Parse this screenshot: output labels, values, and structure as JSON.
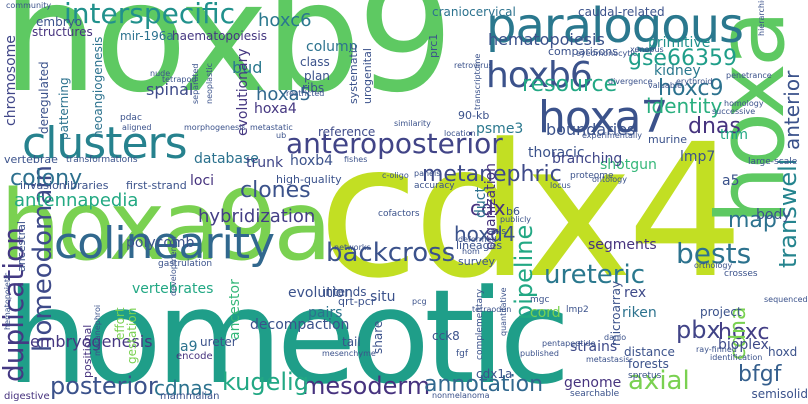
{
  "words": [
    {
      "text": "hoxb9",
      "color": "#5ec962"
    },
    {
      "text": "cdx4",
      "color": "#c2df23"
    },
    {
      "text": "homeotic",
      "color": "#1f9e89"
    },
    {
      "text": "hoxa9a",
      "color": "#7ad151"
    },
    {
      "text": "hoxa",
      "color": "#5ec962"
    },
    {
      "text": "paralogous",
      "color": "#2a788e"
    },
    {
      "text": "clusters",
      "color": "#26828e"
    },
    {
      "text": "colinearity",
      "color": "#31688e"
    },
    {
      "text": "hoxa7",
      "color": "#3b528b"
    },
    {
      "text": "hoxb6",
      "color": "#3b528b"
    },
    {
      "text": "interspecific",
      "color": "#21918c"
    },
    {
      "text": "anteroposterior",
      "color": "#414487"
    },
    {
      "text": "duplication",
      "color": "#443983"
    },
    {
      "text": "bests",
      "color": "#2c728e"
    },
    {
      "text": "homeodomain",
      "color": "#3e4a89"
    },
    {
      "text": "backcross",
      "color": "#3b528b"
    },
    {
      "text": "posterior",
      "color": "#3b528b"
    },
    {
      "text": "mesoderm",
      "color": "#46327e"
    },
    {
      "text": "kugelig",
      "color": "#22a884"
    },
    {
      "text": "annotation",
      "color": "#31688e"
    },
    {
      "text": "axial",
      "color": "#7ad151"
    },
    {
      "text": "cdnas",
      "color": "#2c728e"
    },
    {
      "text": "pipeline",
      "color": "#22a884"
    },
    {
      "text": "ureteric",
      "color": "#2a788e"
    },
    {
      "text": "transwell",
      "color": "#25848e"
    },
    {
      "text": "pbx",
      "color": "#414487"
    },
    {
      "text": "hoxc",
      "color": "#433e85"
    },
    {
      "text": "bfgf",
      "color": "#355f8d"
    },
    {
      "text": "colony",
      "color": "#2d708e"
    },
    {
      "text": "clones",
      "color": "#3b528b"
    },
    {
      "text": "resource",
      "color": "#22a884"
    },
    {
      "text": "gse66359",
      "color": "#1f9e89"
    },
    {
      "text": "hoxc9",
      "color": "#2c728e"
    },
    {
      "text": "identity",
      "color": "#29af7f"
    },
    {
      "text": "anterior",
      "color": "#3b528b"
    },
    {
      "text": "metanephric",
      "color": "#3e4a89"
    },
    {
      "text": "dnas",
      "color": "#46337e"
    },
    {
      "text": "antennapedia",
      "color": "#23a983"
    },
    {
      "text": "hoxd4",
      "color": "#3b528b"
    },
    {
      "text": "cdx",
      "color": "#46327e"
    },
    {
      "text": "map",
      "color": "#2c728e"
    },
    {
      "text": "hybridization",
      "color": "#433e85"
    },
    {
      "text": "embryogenesis",
      "color": "#453781"
    },
    {
      "text": "cdna",
      "color": "#7ad151"
    },
    {
      "text": "hoxc6",
      "color": "#2a788e"
    },
    {
      "text": "hoxa5",
      "color": "#31688e"
    },
    {
      "text": "hematopoiesis",
      "color": "#3b528b"
    },
    {
      "text": "boundaries",
      "color": "#3b528b"
    },
    {
      "text": "chromosome",
      "color": "#404688"
    },
    {
      "text": "spinal",
      "color": "#3e4a89"
    },
    {
      "text": "bud",
      "color": "#2a788e"
    },
    {
      "text": "hoxa4",
      "color": "#453781"
    },
    {
      "text": "kidney",
      "color": "#2a788e"
    },
    {
      "text": "primitive",
      "color": "#21918c"
    },
    {
      "text": "database",
      "color": "#2c728e"
    },
    {
      "text": "trunk",
      "color": "#404688"
    },
    {
      "text": "hoxb4",
      "color": "#3b528b"
    },
    {
      "text": "loci",
      "color": "#46337e"
    },
    {
      "text": "shotgun",
      "color": "#35b779"
    },
    {
      "text": "thoracic",
      "color": "#3b528b"
    },
    {
      "text": "branching",
      "color": "#404688"
    },
    {
      "text": "organization",
      "color": "#46327e"
    },
    {
      "text": "evolutionary",
      "color": "#453781"
    },
    {
      "text": "psme3",
      "color": "#2a788e"
    },
    {
      "text": "column",
      "color": "#2c728e"
    },
    {
      "text": "vertebrates",
      "color": "#22a884"
    },
    {
      "text": "segments",
      "color": "#46327e"
    },
    {
      "text": "riken",
      "color": "#2c728e"
    },
    {
      "text": "rex",
      "color": "#3e4a89"
    },
    {
      "text": "pairs",
      "color": "#2c728e"
    },
    {
      "text": "evolution",
      "color": "#3b528b"
    },
    {
      "text": "strains",
      "color": "#3e4a89"
    },
    {
      "text": "genome",
      "color": "#46337e"
    },
    {
      "text": "bioplex",
      "color": "#3e4a89"
    },
    {
      "text": "tnm",
      "color": "#22a884"
    },
    {
      "text": "lmp7",
      "color": "#3b528b"
    },
    {
      "text": "body",
      "color": "#3b528b"
    },
    {
      "text": "a5",
      "color": "#3b528b"
    },
    {
      "text": "decompaction",
      "color": "#3b528b"
    },
    {
      "text": "a9",
      "color": "#2c728e"
    },
    {
      "text": "ancestor",
      "color": "#35b779"
    },
    {
      "text": "cord",
      "color": "#7ad151"
    },
    {
      "text": "duct",
      "color": "#2c728e"
    },
    {
      "text": "situ",
      "color": "#3b528b"
    },
    {
      "text": "intends",
      "color": "#3b528b"
    },
    {
      "text": "polycomb",
      "color": "#3b528b"
    },
    {
      "text": "embryo",
      "color": "#3b528b"
    },
    {
      "text": "structures",
      "color": "#46327e"
    },
    {
      "text": "mir-196a",
      "color": "#2c728e"
    },
    {
      "text": "haematopoiesis",
      "color": "#453781"
    },
    {
      "text": "craniocervical",
      "color": "#2c728e"
    },
    {
      "text": "caudal-related",
      "color": "#3b528b"
    },
    {
      "text": "neoangiogenesis",
      "color": "#2c728e"
    },
    {
      "text": "patterning",
      "color": "#2c728e"
    },
    {
      "text": "deregulated",
      "color": "#3b528b"
    },
    {
      "text": "ribs",
      "color": "#3b528b"
    },
    {
      "text": "plan",
      "color": "#3b528b"
    },
    {
      "text": "class",
      "color": "#3b528b"
    },
    {
      "text": "reference",
      "color": "#3e4a89"
    },
    {
      "text": "microarray",
      "color": "#3b528b"
    },
    {
      "text": "project",
      "color": "#3b528b"
    },
    {
      "text": "distance",
      "color": "#3b528b"
    },
    {
      "text": "forests",
      "color": "#3b528b"
    },
    {
      "text": "hoxd",
      "color": "#3b528b"
    },
    {
      "text": "tail",
      "color": "#3b528b"
    },
    {
      "text": "share",
      "color": "#3b528b"
    },
    {
      "text": "ureter",
      "color": "#3b528b"
    },
    {
      "text": "gestation",
      "color": "#7ad151"
    },
    {
      "text": "effort",
      "color": "#7ad151"
    },
    {
      "text": "positional",
      "color": "#46327e"
    },
    {
      "text": "encode",
      "color": "#46327e"
    },
    {
      "text": "digestive",
      "color": "#46327e"
    },
    {
      "text": "mammalian",
      "color": "#3b528b"
    },
    {
      "text": "cck8",
      "color": "#3b528b"
    },
    {
      "text": "cdx1a",
      "color": "#3b528b"
    },
    {
      "text": "semisolid",
      "color": "#3b528b"
    },
    {
      "text": "qrt-pcr",
      "color": "#3b528b"
    },
    {
      "text": "high-quality",
      "color": "#3b528b"
    },
    {
      "text": "first-strand",
      "color": "#3b528b"
    },
    {
      "text": "invasion",
      "color": "#3b528b"
    },
    {
      "text": "libraries",
      "color": "#3b528b"
    },
    {
      "text": "vertebrae",
      "color": "#3b528b"
    },
    {
      "text": "transformations",
      "color": "#3b528b"
    },
    {
      "text": "90-kb",
      "color": "#3b528b"
    },
    {
      "text": "comparisons",
      "color": "#3b528b"
    },
    {
      "text": "b6",
      "color": "#3b528b"
    },
    {
      "text": "lineages",
      "color": "#3b528b"
    },
    {
      "text": "survey",
      "color": "#3b528b"
    },
    {
      "text": "lmp2",
      "color": "#3b528b"
    },
    {
      "text": "mgc",
      "color": "#3b528b"
    },
    {
      "text": "ancestral",
      "color": "#3b528b"
    },
    {
      "text": "prc1",
      "color": "#3b528b"
    },
    {
      "text": "gastrulation",
      "color": "#3b528b"
    },
    {
      "text": "systematic",
      "color": "#3b528b"
    },
    {
      "text": "urogenital",
      "color": "#3b528b"
    },
    {
      "text": "murine",
      "color": "#3b528b"
    },
    {
      "text": "large-scale",
      "color": "#3b528b"
    },
    {
      "text": "proteome",
      "color": "#3b528b"
    },
    {
      "text": "community",
      "color": "#3b528b"
    },
    {
      "text": "pdac",
      "color": "#3b528b"
    },
    {
      "text": "nude",
      "color": "#3b528b"
    },
    {
      "text": "fishes",
      "color": "#3b528b"
    },
    {
      "text": "networks",
      "color": "#3b528b"
    },
    {
      "text": "accuracy",
      "color": "#3b528b"
    },
    {
      "text": "cofactors",
      "color": "#3b528b"
    },
    {
      "text": "spretus",
      "color": "#3b528b"
    },
    {
      "text": "fgf",
      "color": "#3b528b"
    },
    {
      "text": "published",
      "color": "#3b528b"
    },
    {
      "text": "complementary",
      "color": "#3b528b"
    },
    {
      "text": "searchable",
      "color": "#3b528b"
    },
    {
      "text": "nonmelanoma",
      "color": "#3b528b"
    },
    {
      "text": "identification",
      "color": "#3b528b"
    },
    {
      "text": "ray-finned",
      "color": "#3b528b"
    },
    {
      "text": "orthology",
      "color": "#3b528b"
    },
    {
      "text": "crosses",
      "color": "#3b528b"
    },
    {
      "text": "penetrance",
      "color": "#3b528b"
    },
    {
      "text": "hierarchical",
      "color": "#3b528b"
    },
    {
      "text": "erythroid",
      "color": "#3b528b"
    },
    {
      "text": "successive",
      "color": "#3b528b"
    },
    {
      "text": "homology",
      "color": "#3b528b"
    },
    {
      "text": "xenopus",
      "color": "#3b528b"
    },
    {
      "text": "locus",
      "color": "#3b528b"
    },
    {
      "text": "valuable",
      "color": "#3b528b"
    },
    {
      "text": "divergence",
      "color": "#3b528b"
    },
    {
      "text": "ontology",
      "color": "#3b528b"
    },
    {
      "text": "experimentally",
      "color": "#3b528b"
    },
    {
      "text": "location",
      "color": "#3b528b"
    },
    {
      "text": "similarity",
      "color": "#3b528b"
    },
    {
      "text": "pentapeptide",
      "color": "#3b528b"
    },
    {
      "text": "metastasis",
      "color": "#3b528b"
    },
    {
      "text": "danio",
      "color": "#3b528b"
    },
    {
      "text": "deformed",
      "color": "#3b528b"
    },
    {
      "text": "publicly",
      "color": "#3b528b"
    },
    {
      "text": "panels",
      "color": "#3b528b"
    },
    {
      "text": "tetrapod",
      "color": "#3b528b"
    },
    {
      "text": "restricted",
      "color": "#3b528b"
    },
    {
      "text": "neoplastic",
      "color": "#3b528b"
    },
    {
      "text": "separated",
      "color": "#3b528b"
    },
    {
      "text": "aligned",
      "color": "#3b528b"
    },
    {
      "text": "morphogenesis",
      "color": "#3b528b"
    },
    {
      "text": "metastatic",
      "color": "#3b528b"
    },
    {
      "text": "hom",
      "color": "#3b528b"
    },
    {
      "text": "pcg",
      "color": "#3b528b"
    },
    {
      "text": "developmental",
      "color": "#3b528b"
    },
    {
      "text": "mesenchyme",
      "color": "#3b528b"
    },
    {
      "text": "quantitative",
      "color": "#3b528b"
    },
    {
      "text": "axis",
      "color": "#3b528b"
    },
    {
      "text": "ub",
      "color": "#3b528b"
    },
    {
      "text": "hematopoietic",
      "color": "#3b528b"
    },
    {
      "text": "metanephroi",
      "color": "#3b528b"
    },
    {
      "text": "retrovirus",
      "color": "#3b528b"
    },
    {
      "text": "sequenced",
      "color": "#3b528b"
    },
    {
      "text": "transcriptome",
      "color": "#3b528b"
    },
    {
      "text": "eyeomonocytic",
      "color": "#3b528b"
    },
    {
      "text": "c-oligo",
      "color": "#3b528b"
    },
    {
      "text": "tetraodon",
      "color": "#3b528b"
    }
  ]
}
